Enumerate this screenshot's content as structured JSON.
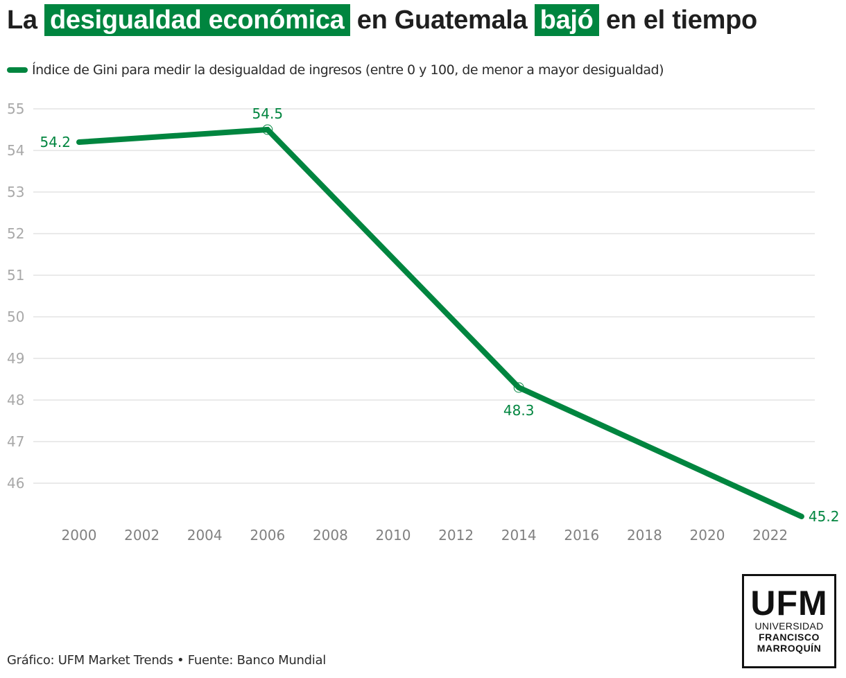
{
  "title": {
    "part1": "La",
    "highlight1": "desigualdad económica",
    "part2": "en Guatemala",
    "highlight2": "bajó",
    "part3": "en el tiempo"
  },
  "colors": {
    "accent": "#00853f",
    "grid": "#e3e3e3",
    "ytick": "#a8a8a8",
    "xtick": "#808080"
  },
  "footer": "Gráfico: UFM Market Trends • Fuente: Banco Mundial",
  "logo": {
    "big": "UFM",
    "line1": "UNIVERSIDAD",
    "line2": "FRANCISCO",
    "line3": "MARROQUÍN"
  },
  "chart_data": {
    "type": "line",
    "title": "La desigualdad económica en Guatemala bajó en el tiempo",
    "xlabel": "",
    "ylabel": "",
    "legend": {
      "position": "top-left",
      "entries": [
        "Índice de Gini para medir la desigualdad de ingresos (entre 0 y 100, de menor a mayor desigualdad)"
      ]
    },
    "x_ticks": [
      2000,
      2002,
      2004,
      2006,
      2008,
      2010,
      2012,
      2014,
      2016,
      2018,
      2020,
      2022
    ],
    "x_tick_labels": [
      "2000",
      "2002",
      "2004",
      "2006",
      "2008",
      "2010",
      "2012",
      "2014",
      "2016",
      "2018",
      "2020",
      "2022"
    ],
    "y_ticks": [
      46,
      47,
      48,
      49,
      50,
      51,
      52,
      53,
      54,
      55
    ],
    "y_tick_labels": [
      "46",
      "47",
      "48",
      "49",
      "50",
      "51",
      "52",
      "53",
      "54",
      "55"
    ],
    "xlim": [
      2000,
      2023
    ],
    "ylim": [
      45,
      55
    ],
    "grid": true,
    "series": [
      {
        "name": "Índice de Gini para medir la desigualdad de ingresos (entre 0 y 100, de menor a mayor desigualdad)",
        "x": [
          2000,
          2006,
          2014,
          2023
        ],
        "values": [
          54.2,
          54.5,
          48.3,
          45.2
        ],
        "labels": [
          "54.2",
          "54.5",
          "48.3",
          "45.2"
        ]
      }
    ]
  }
}
